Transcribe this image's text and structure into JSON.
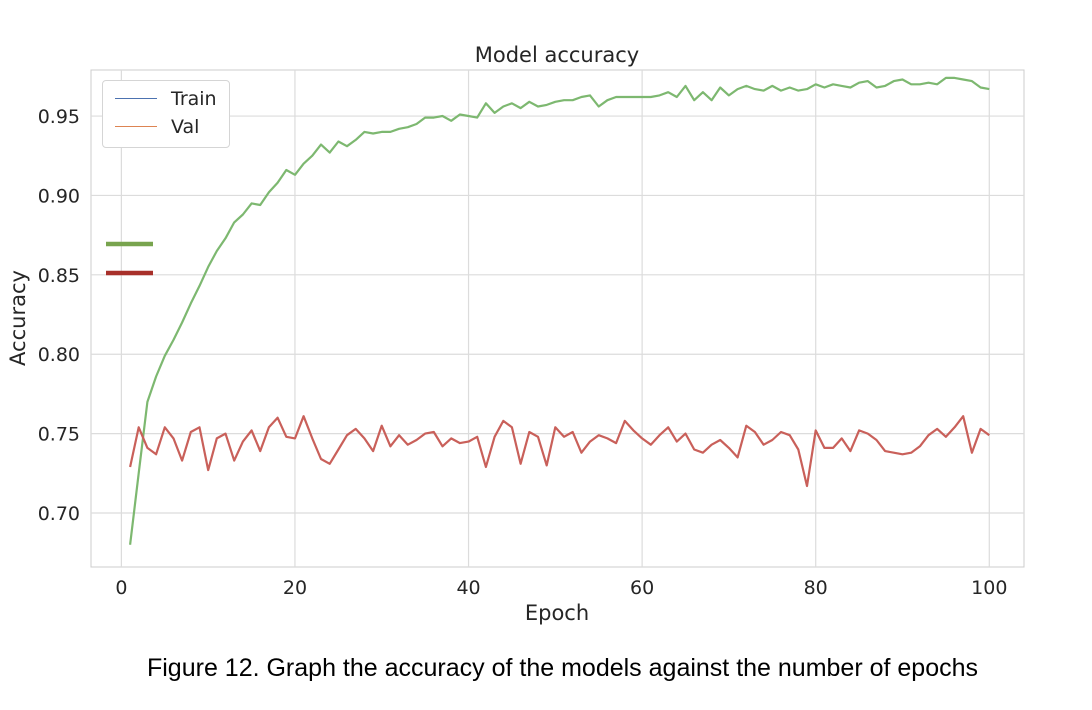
{
  "chart_data": {
    "type": "line",
    "title": "Model accuracy",
    "xlabel": "Epoch",
    "ylabel": "Accuracy",
    "xlim": [
      -3.5,
      104
    ],
    "ylim": [
      0.666,
      0.979
    ],
    "xticks": [
      0,
      20,
      40,
      60,
      80,
      100
    ],
    "yticks": [
      0.7,
      0.75,
      0.8,
      0.85,
      0.9,
      0.95
    ],
    "ytick_labels": [
      "0.70",
      "0.75",
      "0.80",
      "0.85",
      "0.90",
      "0.95"
    ],
    "grid": true,
    "legend_placement": "top-left",
    "legend": [
      {
        "name": "Train",
        "color": "#4c72b0"
      },
      {
        "name": "Val",
        "color": "#dd8452"
      }
    ],
    "series": [
      {
        "name": "Train",
        "color": "#7db870",
        "x": [
          1,
          2,
          3,
          4,
          5,
          6,
          7,
          8,
          9,
          10,
          11,
          12,
          13,
          14,
          15,
          16,
          17,
          18,
          19,
          20,
          21,
          22,
          23,
          24,
          25,
          26,
          27,
          28,
          29,
          30,
          31,
          32,
          33,
          34,
          35,
          36,
          37,
          38,
          39,
          40,
          41,
          42,
          43,
          44,
          45,
          46,
          47,
          48,
          49,
          50,
          51,
          52,
          53,
          54,
          55,
          56,
          57,
          58,
          59,
          60,
          61,
          62,
          63,
          64,
          65,
          66,
          67,
          68,
          69,
          70,
          71,
          72,
          73,
          74,
          75,
          76,
          77,
          78,
          79,
          80,
          81,
          82,
          83,
          84,
          85,
          86,
          87,
          88,
          89,
          90,
          91,
          92,
          93,
          94,
          95,
          96,
          97,
          98,
          99,
          100
        ],
        "values": [
          0.68,
          0.725,
          0.77,
          0.786,
          0.799,
          0.809,
          0.82,
          0.832,
          0.843,
          0.855,
          0.865,
          0.873,
          0.883,
          0.888,
          0.895,
          0.894,
          0.902,
          0.908,
          0.916,
          0.913,
          0.92,
          0.925,
          0.932,
          0.927,
          0.934,
          0.931,
          0.935,
          0.94,
          0.939,
          0.94,
          0.94,
          0.942,
          0.943,
          0.945,
          0.949,
          0.949,
          0.95,
          0.947,
          0.951,
          0.95,
          0.949,
          0.958,
          0.952,
          0.956,
          0.958,
          0.955,
          0.959,
          0.956,
          0.957,
          0.959,
          0.96,
          0.96,
          0.962,
          0.963,
          0.956,
          0.96,
          0.962,
          0.962,
          0.962,
          0.962,
          0.962,
          0.963,
          0.965,
          0.962,
          0.969,
          0.96,
          0.965,
          0.96,
          0.968,
          0.963,
          0.967,
          0.969,
          0.967,
          0.966,
          0.969,
          0.966,
          0.968,
          0.966,
          0.967,
          0.97,
          0.968,
          0.97,
          0.969,
          0.968,
          0.971,
          0.972,
          0.968,
          0.969,
          0.972,
          0.973,
          0.97,
          0.97,
          0.971,
          0.97,
          0.974,
          0.974,
          0.973,
          0.972,
          0.968,
          0.967
        ]
      },
      {
        "name": "Val",
        "color": "#c9605a",
        "x": [
          1,
          2,
          3,
          4,
          5,
          6,
          7,
          8,
          9,
          10,
          11,
          12,
          13,
          14,
          15,
          16,
          17,
          18,
          19,
          20,
          21,
          22,
          23,
          24,
          25,
          26,
          27,
          28,
          29,
          30,
          31,
          32,
          33,
          34,
          35,
          36,
          37,
          38,
          39,
          40,
          41,
          42,
          43,
          44,
          45,
          46,
          47,
          48,
          49,
          50,
          51,
          52,
          53,
          54,
          55,
          56,
          57,
          58,
          59,
          60,
          61,
          62,
          63,
          64,
          65,
          66,
          67,
          68,
          69,
          70,
          71,
          72,
          73,
          74,
          75,
          76,
          77,
          78,
          79,
          80,
          81,
          82,
          83,
          84,
          85,
          86,
          87,
          88,
          89,
          90,
          91,
          92,
          93,
          94,
          95,
          96,
          97,
          98,
          99,
          100
        ],
        "values": [
          0.729,
          0.754,
          0.741,
          0.737,
          0.754,
          0.747,
          0.733,
          0.751,
          0.754,
          0.727,
          0.747,
          0.75,
          0.733,
          0.745,
          0.752,
          0.739,
          0.754,
          0.76,
          0.748,
          0.747,
          0.761,
          0.747,
          0.734,
          0.731,
          0.74,
          0.749,
          0.753,
          0.747,
          0.739,
          0.755,
          0.742,
          0.749,
          0.743,
          0.746,
          0.75,
          0.751,
          0.742,
          0.747,
          0.744,
          0.745,
          0.748,
          0.729,
          0.748,
          0.758,
          0.754,
          0.731,
          0.751,
          0.748,
          0.73,
          0.754,
          0.748,
          0.751,
          0.738,
          0.745,
          0.749,
          0.747,
          0.744,
          0.758,
          0.752,
          0.747,
          0.743,
          0.749,
          0.754,
          0.745,
          0.75,
          0.74,
          0.738,
          0.743,
          0.746,
          0.741,
          0.735,
          0.755,
          0.751,
          0.743,
          0.746,
          0.751,
          0.749,
          0.74,
          0.717,
          0.752,
          0.741,
          0.741,
          0.747,
          0.739,
          0.752,
          0.75,
          0.746,
          0.739,
          0.738,
          0.737,
          0.738,
          0.742,
          0.749,
          0.753,
          0.748,
          0.754,
          0.761,
          0.738,
          0.753,
          0.749
        ]
      }
    ],
    "extra_markers": [
      {
        "color": "#78a44e"
      },
      {
        "color": "#a8302a"
      }
    ]
  },
  "caption": "Figure 12. Graph the accuracy of the models against the number of epochs"
}
